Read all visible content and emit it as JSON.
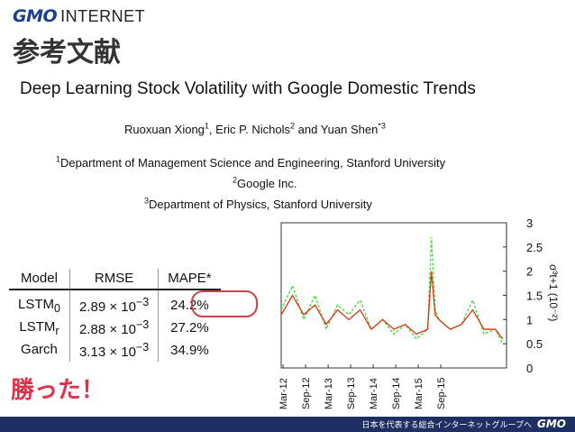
{
  "logo": {
    "brand": "GMO",
    "suffix": "INTERNET"
  },
  "slide_heading": "参考文献",
  "paper": {
    "title": "Deep Learning Stock Volatility with Google Domestic Trends",
    "authors": [
      {
        "name": "Ruoxuan Xiong",
        "mark": "1",
        "sep": ", "
      },
      {
        "name": "Eric P. Nichols",
        "mark": "2",
        "sep": " and "
      },
      {
        "name": "Yuan Shen",
        "mark": "*3",
        "sep": ""
      }
    ],
    "affiliations": [
      {
        "mark": "1",
        "text": "Department of Management Science and Engineering, Stanford University"
      },
      {
        "mark": "2",
        "text": "Google Inc."
      },
      {
        "mark": "3",
        "text": "Department of Physics, Stanford University"
      }
    ]
  },
  "results_table": {
    "headers": [
      "Model",
      "RMSE",
      "MAPE*"
    ],
    "rows": [
      {
        "model": "LSTM",
        "model_sub": "0",
        "rmse": "2.89 × 10",
        "rmse_exp": "−3",
        "mape": "24.2%"
      },
      {
        "model": "LSTM",
        "model_sub": "r",
        "rmse": "2.88 × 10",
        "rmse_exp": "−3",
        "mape": "27.2%"
      },
      {
        "model": "Garch",
        "model_sub": "",
        "rmse": "3.13 × 10",
        "rmse_exp": "−3",
        "mape": "34.9%"
      }
    ]
  },
  "callout": "勝った！",
  "chart_data": {
    "type": "line",
    "ylabel": "σ³t+1 (10⁻²)",
    "ylim": [
      0,
      3
    ],
    "yticks": [
      "0",
      "0.5",
      "1",
      "1.5",
      "2",
      "2.5",
      "3"
    ],
    "xticks": [
      "Mar-12",
      "Sep-12",
      "Mar-13",
      "Sep-13",
      "Mar-14",
      "Sep-14",
      "Mar-15",
      "Sep-15"
    ],
    "x_months": [
      0,
      3,
      6,
      9,
      12,
      15,
      18,
      21,
      24,
      27,
      30,
      33,
      36,
      39,
      40,
      41,
      42,
      45,
      48,
      51,
      54,
      57,
      59
    ],
    "series": [
      {
        "color": "#33dd33",
        "style": "dashed",
        "values": [
          1.2,
          1.7,
          1.0,
          1.5,
          0.8,
          1.3,
          1.1,
          1.4,
          0.8,
          1.0,
          0.7,
          0.9,
          0.6,
          0.8,
          2.7,
          1.2,
          1.0,
          0.8,
          0.9,
          1.4,
          0.7,
          0.8,
          0.5
        ]
      },
      {
        "color": "#dd3311",
        "style": "solid",
        "values": [
          1.1,
          1.5,
          1.1,
          1.3,
          0.9,
          1.2,
          1.0,
          1.2,
          0.8,
          1.0,
          0.8,
          0.9,
          0.7,
          0.8,
          2.0,
          1.1,
          1.0,
          0.8,
          0.9,
          1.2,
          0.8,
          0.8,
          0.6
        ]
      }
    ]
  },
  "footer": {
    "tagline": "日本を代表する総合インターネットグループへ",
    "logo": "GMO"
  }
}
